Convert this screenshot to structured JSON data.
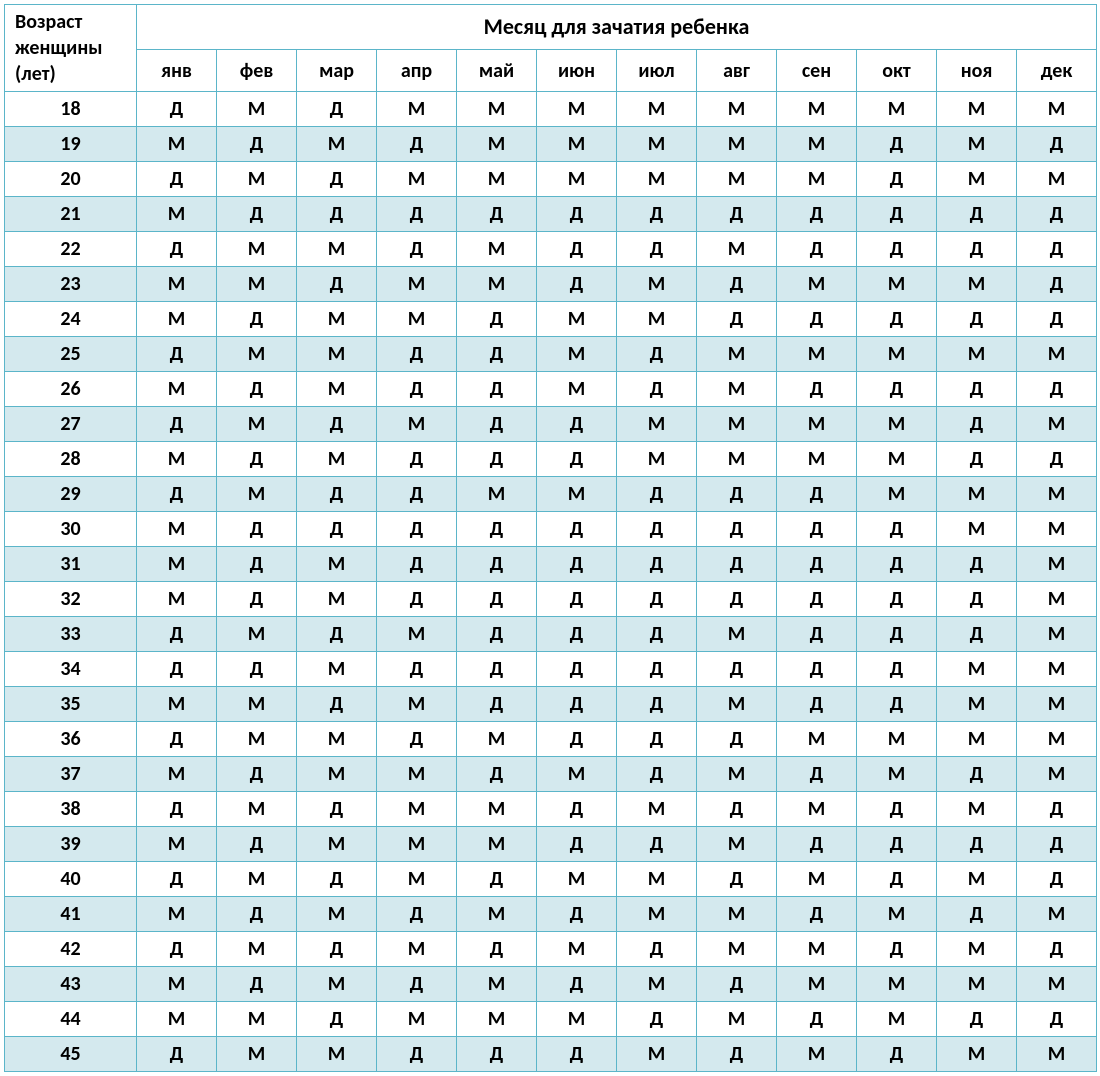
{
  "table": {
    "type": "table",
    "header_age_title": "Возраст женщины (лет)",
    "header_month_title": "Месяц для зачатия ребенка",
    "months": [
      "янв",
      "фев",
      "мар",
      "апр",
      "май",
      "июн",
      "июл",
      "авг",
      "сен",
      "окт",
      "ноя",
      "дек"
    ],
    "ages": [
      18,
      19,
      20,
      21,
      22,
      23,
      24,
      25,
      26,
      27,
      28,
      29,
      30,
      31,
      32,
      33,
      34,
      35,
      36,
      37,
      38,
      39,
      40,
      41,
      42,
      43,
      44,
      45
    ],
    "rows": [
      [
        "Д",
        "М",
        "Д",
        "М",
        "М",
        "М",
        "М",
        "М",
        "М",
        "М",
        "М",
        "М"
      ],
      [
        "М",
        "Д",
        "М",
        "Д",
        "М",
        "М",
        "М",
        "М",
        "М",
        "Д",
        "М",
        "Д"
      ],
      [
        "Д",
        "М",
        "Д",
        "М",
        "М",
        "М",
        "М",
        "М",
        "М",
        "Д",
        "М",
        "М"
      ],
      [
        "М",
        "Д",
        "Д",
        "Д",
        "Д",
        "Д",
        "Д",
        "Д",
        "Д",
        "Д",
        "Д",
        "Д"
      ],
      [
        "Д",
        "М",
        "М",
        "Д",
        "М",
        "Д",
        "Д",
        "М",
        "Д",
        "Д",
        "Д",
        "Д"
      ],
      [
        "М",
        "М",
        "Д",
        "М",
        "М",
        "Д",
        "М",
        "Д",
        "М",
        "М",
        "М",
        "Д"
      ],
      [
        "М",
        "Д",
        "М",
        "М",
        "Д",
        "М",
        "М",
        "Д",
        "Д",
        "Д",
        "Д",
        "Д"
      ],
      [
        "Д",
        "М",
        "М",
        "Д",
        "Д",
        "М",
        "Д",
        "М",
        "М",
        "М",
        "М",
        "М"
      ],
      [
        "М",
        "Д",
        "М",
        "Д",
        "Д",
        "М",
        "Д",
        "М",
        "Д",
        "Д",
        "Д",
        "Д"
      ],
      [
        "Д",
        "М",
        "Д",
        "М",
        "Д",
        "Д",
        "М",
        "М",
        "М",
        "М",
        "Д",
        "М"
      ],
      [
        "М",
        "Д",
        "М",
        "Д",
        "Д",
        "Д",
        "М",
        "М",
        "М",
        "М",
        "Д",
        "Д"
      ],
      [
        "Д",
        "М",
        "Д",
        "Д",
        "М",
        "М",
        "Д",
        "Д",
        "Д",
        "М",
        "М",
        "М"
      ],
      [
        "М",
        "Д",
        "Д",
        "Д",
        "Д",
        "Д",
        "Д",
        "Д",
        "Д",
        "Д",
        "М",
        "М"
      ],
      [
        "М",
        "Д",
        "М",
        "Д",
        "Д",
        "Д",
        "Д",
        "Д",
        "Д",
        "Д",
        "Д",
        "М"
      ],
      [
        "М",
        "Д",
        "М",
        "Д",
        "Д",
        "Д",
        "Д",
        "Д",
        "Д",
        "Д",
        "Д",
        "М"
      ],
      [
        "Д",
        "М",
        "Д",
        "М",
        "Д",
        "Д",
        "Д",
        "М",
        "Д",
        "Д",
        "Д",
        "М"
      ],
      [
        "Д",
        "Д",
        "М",
        "Д",
        "Д",
        "Д",
        "Д",
        "Д",
        "Д",
        "Д",
        "М",
        "М"
      ],
      [
        "М",
        "М",
        "Д",
        "М",
        "Д",
        "Д",
        "Д",
        "М",
        "Д",
        "Д",
        "М",
        "М"
      ],
      [
        "Д",
        "М",
        "М",
        "Д",
        "М",
        "Д",
        "Д",
        "Д",
        "М",
        "М",
        "М",
        "М"
      ],
      [
        "М",
        "Д",
        "М",
        "М",
        "Д",
        "М",
        "Д",
        "М",
        "Д",
        "М",
        "Д",
        "М"
      ],
      [
        "Д",
        "М",
        "Д",
        "М",
        "М",
        "Д",
        "М",
        "Д",
        "М",
        "Д",
        "М",
        "Д"
      ],
      [
        "М",
        "Д",
        "М",
        "М",
        "М",
        "Д",
        "Д",
        "М",
        "Д",
        "Д",
        "Д",
        "Д"
      ],
      [
        "Д",
        "М",
        "Д",
        "М",
        "Д",
        "М",
        "М",
        "Д",
        "М",
        "Д",
        "М",
        "Д"
      ],
      [
        "М",
        "Д",
        "М",
        "Д",
        "М",
        "Д",
        "М",
        "М",
        "Д",
        "М",
        "Д",
        "М"
      ],
      [
        "Д",
        "М",
        "Д",
        "М",
        "Д",
        "М",
        "Д",
        "М",
        "М",
        "Д",
        "М",
        "Д"
      ],
      [
        "М",
        "Д",
        "М",
        "Д",
        "М",
        "Д",
        "М",
        "Д",
        "М",
        "М",
        "М",
        "М"
      ],
      [
        "М",
        "М",
        "Д",
        "М",
        "М",
        "М",
        "Д",
        "М",
        "Д",
        "М",
        "Д",
        "Д"
      ],
      [
        "Д",
        "М",
        "М",
        "Д",
        "Д",
        "Д",
        "М",
        "Д",
        "М",
        "Д",
        "М",
        "М"
      ]
    ],
    "styling": {
      "border_color": "#5bb5c9",
      "row_even_bg": "#ffffff",
      "row_odd_bg": "#d4e9ee",
      "header_bg": "#ffffff",
      "text_color": "#000000",
      "font_family": "Calibri, Arial, sans-serif",
      "header_fontsize_pt": 16,
      "cell_fontsize_pt": 15,
      "cell_font_weight": "bold"
    }
  }
}
